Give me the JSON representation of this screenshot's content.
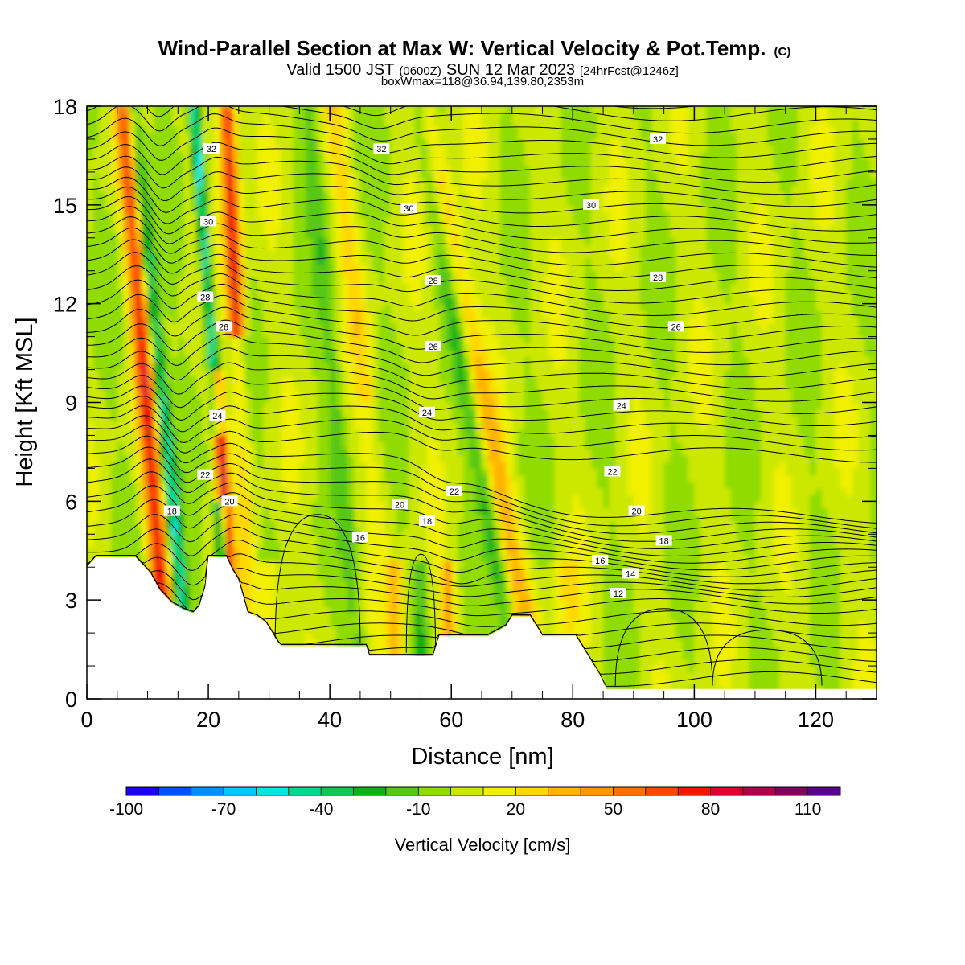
{
  "header": {
    "title": "Wind-Parallel Section at Max W: Vertical Velocity & Pot.Temp.",
    "title_mark": "(C)",
    "valid_prefix": "Valid 1500 JST",
    "valid_zulu": "(0600Z)",
    "valid_date": "SUN 12 Mar 2023",
    "forecast": "[24hrFcst@1246z]",
    "boxmax": "boxWmax=118@36.94,139.80,2353m"
  },
  "chart_data": {
    "type": "heatmap",
    "xlabel": "Distance [nm]",
    "ylabel": "Height [Kft MSL]",
    "xlim": [
      0,
      130
    ],
    "ylim": [
      0,
      18
    ],
    "x_ticks": [
      "0",
      "20",
      "40",
      "60",
      "80",
      "100",
      "120"
    ],
    "x_tick_values": [
      0,
      20,
      40,
      60,
      80,
      100,
      120
    ],
    "y_ticks": [
      "0",
      "3",
      "6",
      "9",
      "12",
      "15",
      "18"
    ],
    "y_tick_values": [
      0,
      3,
      6,
      9,
      12,
      15,
      18
    ],
    "colorbar": {
      "label": "Vertical Velocity [cm/s]",
      "bounds": [
        -100,
        120
      ],
      "step": 10,
      "tick_labels": [
        "-100",
        "-70",
        "-40",
        "-10",
        "20",
        "50",
        "80",
        "110"
      ],
      "tick_values": [
        -100,
        -70,
        -40,
        -10,
        20,
        50,
        80,
        110
      ],
      "colors": [
        "#1a00ff",
        "#0050ff",
        "#0090ff",
        "#00c8ff",
        "#00e8e0",
        "#00d890",
        "#10c850",
        "#10b018",
        "#58c818",
        "#90dc00",
        "#cce800",
        "#f0f000",
        "#ffd800",
        "#ffb400",
        "#ff9800",
        "#ff7000",
        "#ff4800",
        "#f01800",
        "#e00030",
        "#b00048",
        "#800060",
        "#5a008c"
      ]
    },
    "terrain": [
      [
        0,
        4.0
      ],
      [
        1.5,
        4.3
      ],
      [
        8,
        4.3
      ],
      [
        10.5,
        3.8
      ],
      [
        12,
        3.3
      ],
      [
        13,
        3.1
      ],
      [
        14,
        2.9
      ],
      [
        16,
        2.7
      ],
      [
        17.5,
        2.6
      ],
      [
        18.5,
        2.8
      ],
      [
        19.5,
        3.4
      ],
      [
        20,
        4.3
      ],
      [
        23,
        4.3
      ],
      [
        24,
        3.9
      ],
      [
        25,
        3.6
      ],
      [
        26.5,
        2.6
      ],
      [
        28,
        2.5
      ],
      [
        29.5,
        2.3
      ],
      [
        30.5,
        2.0
      ],
      [
        31.5,
        1.7
      ],
      [
        32,
        1.6
      ],
      [
        40,
        1.6
      ],
      [
        46,
        1.6
      ],
      [
        46.5,
        1.3
      ],
      [
        57,
        1.3
      ],
      [
        57.5,
        1.6
      ],
      [
        58,
        1.9
      ],
      [
        66,
        1.9
      ],
      [
        69,
        2.2
      ],
      [
        70,
        2.5
      ],
      [
        73,
        2.5
      ],
      [
        74,
        2.2
      ],
      [
        75,
        1.9
      ],
      [
        80.5,
        1.9
      ],
      [
        81.5,
        1.6
      ],
      [
        82.5,
        1.3
      ],
      [
        83.5,
        1.0
      ],
      [
        84.5,
        0.7
      ],
      [
        85.5,
        0.3
      ],
      [
        130,
        0.3
      ],
      [
        130,
        0
      ]
    ],
    "contour_labels": [
      {
        "x": 20.5,
        "y": 16.7,
        "text": "32"
      },
      {
        "x": 48.5,
        "y": 16.7,
        "text": "32"
      },
      {
        "x": 94,
        "y": 17.0,
        "text": "32"
      },
      {
        "x": 20,
        "y": 14.5,
        "text": "30"
      },
      {
        "x": 53,
        "y": 14.9,
        "text": "30"
      },
      {
        "x": 83,
        "y": 15.0,
        "text": "30"
      },
      {
        "x": 19.5,
        "y": 12.2,
        "text": "28"
      },
      {
        "x": 57,
        "y": 12.7,
        "text": "28"
      },
      {
        "x": 94,
        "y": 12.8,
        "text": "28"
      },
      {
        "x": 22.5,
        "y": 11.3,
        "text": "26"
      },
      {
        "x": 57,
        "y": 10.7,
        "text": "26"
      },
      {
        "x": 97,
        "y": 11.3,
        "text": "26"
      },
      {
        "x": 21.5,
        "y": 8.6,
        "text": "24"
      },
      {
        "x": 56,
        "y": 8.7,
        "text": "24"
      },
      {
        "x": 88,
        "y": 8.9,
        "text": "24"
      },
      {
        "x": 19.5,
        "y": 6.8,
        "text": "22"
      },
      {
        "x": 60.5,
        "y": 6.3,
        "text": "22"
      },
      {
        "x": 86.5,
        "y": 6.9,
        "text": "22"
      },
      {
        "x": 23.5,
        "y": 6.0,
        "text": "20"
      },
      {
        "x": 51.5,
        "y": 5.9,
        "text": "20"
      },
      {
        "x": 90.5,
        "y": 5.7,
        "text": "20"
      },
      {
        "x": 14,
        "y": 5.7,
        "text": "18"
      },
      {
        "x": 56,
        "y": 5.4,
        "text": "18"
      },
      {
        "x": 95,
        "y": 4.8,
        "text": "18"
      },
      {
        "x": 45,
        "y": 4.9,
        "text": "16"
      },
      {
        "x": 84.5,
        "y": 4.2,
        "text": "16"
      },
      {
        "x": 89.5,
        "y": 3.8,
        "text": "14"
      },
      {
        "x": 87.5,
        "y": 3.2,
        "text": "12"
      }
    ]
  }
}
